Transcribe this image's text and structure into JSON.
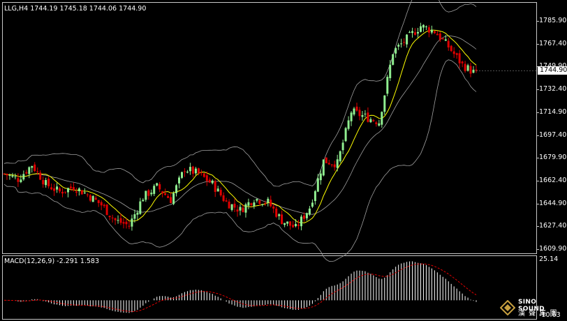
{
  "main_chart": {
    "title": "LLG,H4",
    "ohlc": "1744.19 1745.18 1744.06 1744.90",
    "price_axis": [
      "1785.90",
      "1767.40",
      "1749.90",
      "1732.40",
      "1714.90",
      "1697.40",
      "1679.90",
      "1662.40",
      "1644.90",
      "1627.40",
      "1609.90"
    ],
    "current_price": "1744.90"
  },
  "macd": {
    "label": "MACD(12,26,9) -2.291 1.583",
    "axis_top": "25.14",
    "axis_bottom": "-10.63"
  },
  "watermark": {
    "brand": "SINO SOUND",
    "subtitle": "漢 聲 集 團"
  },
  "colors": {
    "bull": "#90ee90",
    "bear": "#e00000",
    "ma": "#ffff00",
    "bands": "#a0a0a0",
    "signal": "#e00000"
  },
  "chart_data": [
    {
      "type": "candlestick",
      "title": "LLG,H4",
      "y_axis": [
        1609.9,
        1785.9
      ],
      "series": [
        {
          "name": "LLG",
          "points": [
            {
              "t": 0,
              "c": 1668
            },
            {
              "t": 5,
              "c": 1664
            },
            {
              "t": 10,
              "c": 1675
            },
            {
              "t": 15,
              "c": 1660
            },
            {
              "t": 20,
              "c": 1654
            },
            {
              "t": 25,
              "c": 1658
            },
            {
              "t": 30,
              "c": 1652
            },
            {
              "t": 35,
              "c": 1644
            },
            {
              "t": 40,
              "c": 1632
            },
            {
              "t": 45,
              "c": 1628
            },
            {
              "t": 50,
              "c": 1650
            },
            {
              "t": 55,
              "c": 1658
            },
            {
              "t": 60,
              "c": 1648
            },
            {
              "t": 65,
              "c": 1672
            },
            {
              "t": 70,
              "c": 1668
            },
            {
              "t": 75,
              "c": 1660
            },
            {
              "t": 80,
              "c": 1646
            },
            {
              "t": 85,
              "c": 1640
            },
            {
              "t": 90,
              "c": 1649
            },
            {
              "t": 95,
              "c": 1646
            },
            {
              "t": 100,
              "c": 1632
            },
            {
              "t": 105,
              "c": 1626
            },
            {
              "t": 110,
              "c": 1642
            },
            {
              "t": 115,
              "c": 1678
            },
            {
              "t": 120,
              "c": 1676
            },
            {
              "t": 125,
              "c": 1716
            },
            {
              "t": 130,
              "c": 1712
            },
            {
              "t": 135,
              "c": 1708
            },
            {
              "t": 140,
              "c": 1762
            },
            {
              "t": 145,
              "c": 1772
            },
            {
              "t": 150,
              "c": 1782
            },
            {
              "t": 155,
              "c": 1778
            },
            {
              "t": 160,
              "c": 1766
            },
            {
              "t": 165,
              "c": 1752
            },
            {
              "t": 170,
              "c": 1745
            }
          ]
        }
      ]
    },
    {
      "type": "bar",
      "title": "MACD(12,26,9)",
      "ylim": [
        -10.63,
        25.14
      ],
      "series": [
        {
          "name": "MACD",
          "values": [
            -2.291
          ]
        },
        {
          "name": "Signal",
          "values": [
            1.583
          ]
        }
      ]
    }
  ]
}
